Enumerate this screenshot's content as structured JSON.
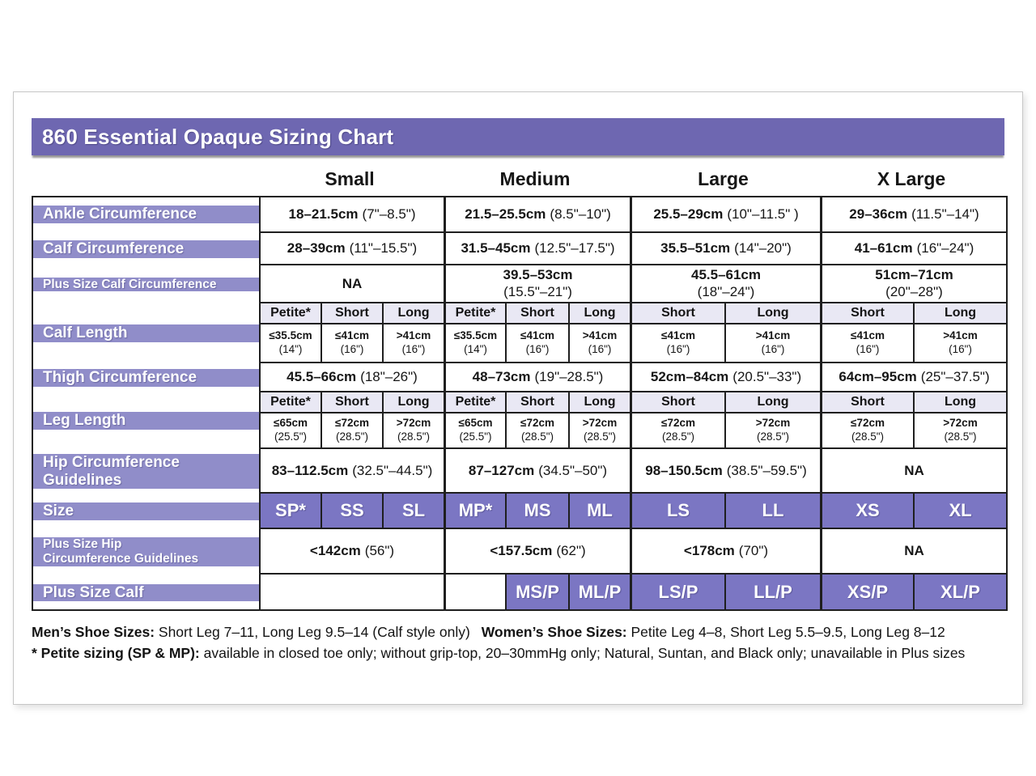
{
  "colors": {
    "titlebar": "#6e67b1",
    "label": "#908dc9",
    "sizecell": "#7b76c3",
    "subhead": "#e9e8f4",
    "border": "#1f1f1f",
    "card_border": "#c6c6c6"
  },
  "title": "860 Essential Opaque Sizing Chart",
  "size_headers": {
    "small": "Small",
    "medium": "Medium",
    "large": "Large",
    "xlarge": "X Large"
  },
  "rows": {
    "ankle": {
      "label": "Ankle Circumference",
      "values": [
        {
          "cm": "18–21.5cm",
          "inch": "(7\"–8.5\")"
        },
        {
          "cm": "21.5–25.5cm",
          "inch": "(8.5\"–10\")"
        },
        {
          "cm": "25.5–29cm",
          "inch": "(10\"–11.5\" )"
        },
        {
          "cm": "29–36cm",
          "inch": "(11.5\"–14\")"
        }
      ]
    },
    "calf": {
      "label": "Calf Circumference",
      "values": [
        {
          "cm": "28–39cm",
          "inch": "(11\"–15.5\")"
        },
        {
          "cm": "31.5–45cm",
          "inch": "(12.5\"–17.5\")"
        },
        {
          "cm": "35.5–51cm",
          "inch": "(14\"–20\")"
        },
        {
          "cm": "41–61cm",
          "inch": "(16\"–24\")"
        }
      ]
    },
    "pcc": {
      "label": "Plus Size Calf Circumference",
      "values": [
        {
          "cm": "NA",
          "inch": ""
        },
        {
          "cm": "39.5–53cm",
          "inch": "(15.5\"–21\")"
        },
        {
          "cm": "45.5–61cm",
          "inch": "(18\"–24\")"
        },
        {
          "cm": "51cm–71cm",
          "inch": "(20\"–28\")"
        }
      ]
    },
    "calf_length": {
      "label": "Calf Length",
      "subheaders": [
        "Petite*",
        "Short",
        "Long",
        "Petite*",
        "Short",
        "Long",
        "Short",
        "Long",
        "Short",
        "Long"
      ],
      "values": [
        {
          "cm": "≤35.5cm",
          "inch": "(14\")"
        },
        {
          "cm": "≤41cm",
          "inch": "(16\")"
        },
        {
          "cm": ">41cm",
          "inch": "(16\")"
        },
        {
          "cm": "≤35.5cm",
          "inch": "(14\")"
        },
        {
          "cm": "≤41cm",
          "inch": "(16\")"
        },
        {
          "cm": ">41cm",
          "inch": "(16\")"
        },
        {
          "cm": "≤41cm",
          "inch": "(16\")"
        },
        {
          "cm": ">41cm",
          "inch": "(16\")"
        },
        {
          "cm": "≤41cm",
          "inch": "(16\")"
        },
        {
          "cm": ">41cm",
          "inch": "(16\")"
        }
      ]
    },
    "thigh": {
      "label": "Thigh Circumference",
      "values": [
        {
          "cm": "45.5–66cm",
          "inch": "(18\"–26\")"
        },
        {
          "cm": "48–73cm",
          "inch": "(19\"–28.5\")"
        },
        {
          "cm": "52cm–84cm",
          "inch": "(20.5\"–33\")"
        },
        {
          "cm": "64cm–95cm",
          "inch": "(25\"–37.5\")"
        }
      ]
    },
    "leg_length": {
      "label": "Leg Length",
      "subheaders": [
        "Petite*",
        "Short",
        "Long",
        "Petite*",
        "Short",
        "Long",
        "Short",
        "Long",
        "Short",
        "Long"
      ],
      "values": [
        {
          "cm": "≤65cm",
          "inch": "(25.5\")"
        },
        {
          "cm": "≤72cm",
          "inch": "(28.5\")"
        },
        {
          "cm": ">72cm",
          "inch": "(28.5\")"
        },
        {
          "cm": "≤65cm",
          "inch": "(25.5\")"
        },
        {
          "cm": "≤72cm",
          "inch": "(28.5\")"
        },
        {
          "cm": ">72cm",
          "inch": "(28.5\")"
        },
        {
          "cm": "≤72cm",
          "inch": "(28.5\")"
        },
        {
          "cm": ">72cm",
          "inch": "(28.5\")"
        },
        {
          "cm": "≤72cm",
          "inch": "(28.5\")"
        },
        {
          "cm": ">72cm",
          "inch": "(28.5\")"
        }
      ]
    },
    "hip": {
      "label_line1": "Hip Circumference",
      "label_line2": "Guidelines",
      "values": [
        {
          "cm": "83–112.5cm",
          "inch": "(32.5\"–44.5\")"
        },
        {
          "cm": "87–127cm",
          "inch": "(34.5\"–50\")"
        },
        {
          "cm": "98–150.5cm",
          "inch": "(38.5\"–59.5\")"
        },
        {
          "cm": "NA",
          "inch": ""
        }
      ]
    },
    "size": {
      "label": "Size",
      "values": [
        "SP*",
        "SS",
        "SL",
        "MP*",
        "MS",
        "ML",
        "LS",
        "LL",
        "XS",
        "XL"
      ]
    },
    "phip": {
      "label_line1": "Plus Size Hip",
      "label_line2": "Circumference Guidelines",
      "values": [
        {
          "cm": "<142cm",
          "inch": "(56\")"
        },
        {
          "cm": "<157.5cm",
          "inch": "(62\")"
        },
        {
          "cm": "<178cm",
          "inch": "(70\")"
        },
        {
          "cm": "NA",
          "inch": ""
        }
      ]
    },
    "pcalf": {
      "label": "Plus Size Calf",
      "values": [
        "",
        "",
        "MS/P",
        "ML/P",
        "LS/P",
        "LL/P",
        "XS/P",
        "XL/P"
      ]
    }
  },
  "footer": {
    "line1_bold1": "Men’s Shoe Sizes:",
    "line1_text1": "Short Leg 7–11, Long Leg 9.5–14 (Calf style only)",
    "line1_bold2": "Women’s Shoe Sizes:",
    "line1_text2": "Petite Leg 4–8,  Short Leg 5.5–9.5, Long Leg 8–12",
    "line2_bold": "* Petite sizing (SP & MP):",
    "line2_text": "available in closed toe only; without grip-top, 20–30mmHg only; Natural, Suntan, and Black only; unavailable in Plus sizes"
  }
}
